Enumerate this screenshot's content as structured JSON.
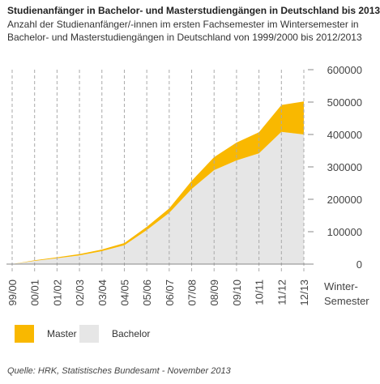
{
  "header": {
    "title": "Studienanfänger in Bachelor- und Masterstudiengängen in Deutschland bis 2013",
    "subtitle_line1": "Anzahl der Studienanfänger/-innen im ersten Fachsemester im Wintersemester in",
    "subtitle_line2": "Bachelor- und Masterstudiengängen in Deutschland von 1999/2000 bis 2012/2013"
  },
  "footer": {
    "source": "Quelle: HRK, Statistisches Bundesamt - November 2013"
  },
  "colors": {
    "master": "#f9b800",
    "bachelor": "#e6e6e6",
    "grid": "#aaaaaa",
    "axis": "#888888"
  },
  "chart_data": {
    "type": "area",
    "stacked": true,
    "x": [
      "99/00",
      "00/01",
      "01/02",
      "02/03",
      "03/04",
      "04/05",
      "05/06",
      "06/07",
      "07/08",
      "08/09",
      "09/10",
      "10/11",
      "11/12",
      "12/13"
    ],
    "x_axis_label_line1": "Winter-",
    "x_axis_label_line2": "Semester",
    "series": [
      {
        "name": "Bachelor",
        "values": [
          0,
          10000,
          18000,
          27000,
          40000,
          58000,
          105000,
          158000,
          232000,
          290000,
          320000,
          342000,
          408000,
          400000
        ]
      },
      {
        "name": "Master",
        "values": [
          0,
          2000,
          3000,
          4000,
          5000,
          7000,
          10000,
          14000,
          25000,
          40000,
          55000,
          65000,
          83000,
          102000
        ]
      }
    ],
    "yaxis": {
      "position": "right",
      "ticks": [
        "600000",
        "500000",
        "400000",
        "300000",
        "200000",
        "100000",
        "0"
      ]
    },
    "ylim": [
      0,
      600000
    ],
    "grid": "vertical dashed"
  },
  "legend": [
    {
      "name": "Master",
      "color": "#f9b800"
    },
    {
      "name": "Bachelor",
      "color": "#e6e6e6"
    }
  ]
}
